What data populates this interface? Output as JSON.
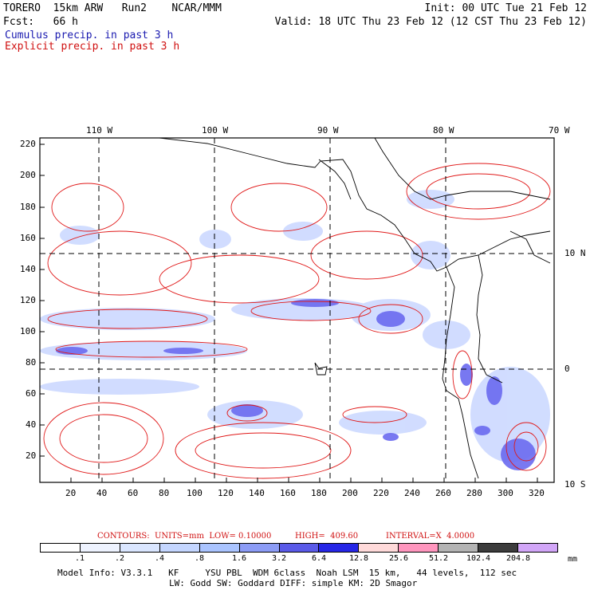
{
  "header": {
    "model": "TORERO  15km ARW   Run2    NCAR/MMM",
    "init": "Init: 00 UTC Tue 21 Feb 12",
    "fcst": "Fcst:   66 h",
    "valid": "Valid: 18 UTC Thu 23 Feb 12 (12 CST Thu 23 Feb 12)",
    "cumulus": "Cumulus precip. in past 3 h",
    "explicit": "Explicit precip. in past 3 h"
  },
  "map": {
    "lon_labels": [
      "110 W",
      "100 W",
      "90 W",
      "80 W",
      "70 W"
    ],
    "lat_labels": [
      "10 N",
      "0",
      "10 S"
    ],
    "y_ticks": [
      "220",
      "200",
      "180",
      "160",
      "140",
      "120",
      "100",
      "80",
      "60",
      "40",
      "20"
    ],
    "x_ticks": [
      "20",
      "40",
      "60",
      "80",
      "100",
      "120",
      "140",
      "160",
      "180",
      "200",
      "220",
      "240",
      "260",
      "280",
      "300",
      "320"
    ]
  },
  "contours": {
    "label": "CONTOURS:  UNITS=mm  LOW= 0.10000",
    "high": "HIGH=  409.60",
    "interval": "INTERVAL=X  4.0000"
  },
  "colorbar": {
    "labels": [
      ".1",
      ".2",
      ".4",
      ".8",
      "1.6",
      "3.2",
      "6.4",
      "12.8",
      "25.6",
      "51.2",
      "102.4",
      "204.8"
    ],
    "unit": "mm",
    "colors": [
      "#ffffff",
      "#eef3ff",
      "#dae6ff",
      "#c4d6ff",
      "#aac4ff",
      "#8c9cf6",
      "#5a5ae8",
      "#2626e6",
      "#ffdada",
      "#ff96be",
      "#b4b4b4",
      "#3c3c3c",
      "#d2a6f8"
    ]
  },
  "footer": {
    "line1": "Model Info: V3.3.1   KF     YSU PBL  WDM 6class  Noah LSM  15 km,   44 levels,  112 sec",
    "line2": "LW: Godd SW: Goddard DIFF: simple KM: 2D Smagor"
  }
}
